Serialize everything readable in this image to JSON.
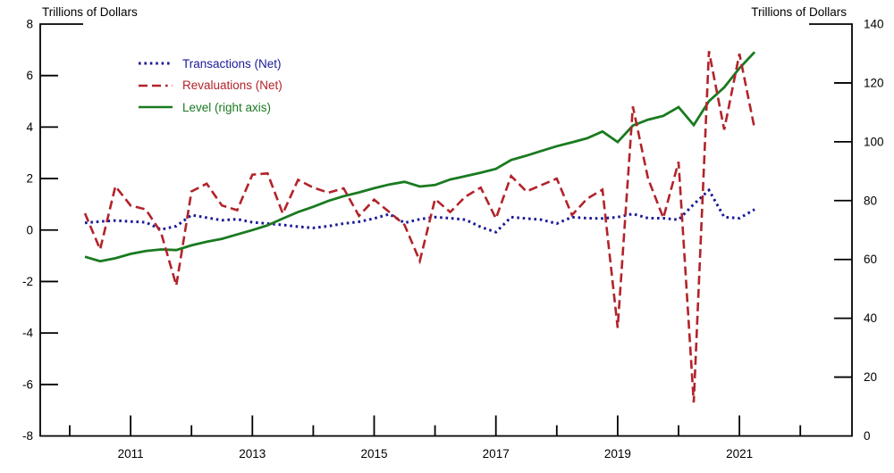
{
  "chart_data": {
    "type": "line",
    "title": "",
    "x_unit": "quarter_end_decimal_year",
    "x": [
      2010.25,
      2010.5,
      2010.75,
      2011.0,
      2011.25,
      2011.5,
      2011.75,
      2012.0,
      2012.25,
      2012.5,
      2012.75,
      2013.0,
      2013.25,
      2013.5,
      2013.75,
      2014.0,
      2014.25,
      2014.5,
      2014.75,
      2015.0,
      2015.25,
      2015.5,
      2015.75,
      2016.0,
      2016.25,
      2016.5,
      2016.75,
      2017.0,
      2017.25,
      2017.5,
      2017.75,
      2018.0,
      2018.25,
      2018.5,
      2018.75,
      2019.0,
      2019.25,
      2019.5,
      2019.75,
      2020.0,
      2020.25,
      2020.5,
      2020.75,
      2021.0,
      2021.25
    ],
    "series": [
      {
        "name": "Transactions (Net)",
        "axis": "left",
        "style": "dotted",
        "color": "#1a1a99",
        "values": [
          0.28,
          0.33,
          0.37,
          0.33,
          0.3,
          0.02,
          0.15,
          0.58,
          0.48,
          0.38,
          0.42,
          0.3,
          0.25,
          0.2,
          0.13,
          0.08,
          0.15,
          0.25,
          0.32,
          0.45,
          0.62,
          0.28,
          0.42,
          0.5,
          0.46,
          0.4,
          0.12,
          -0.08,
          0.5,
          0.45,
          0.4,
          0.25,
          0.5,
          0.46,
          0.45,
          0.5,
          0.63,
          0.46,
          0.46,
          0.4,
          1.0,
          1.55,
          0.5,
          0.46,
          0.8
        ]
      },
      {
        "name": "Revaluations (Net)",
        "axis": "left",
        "style": "dashed",
        "color": "#b2232a",
        "values": [
          0.65,
          -0.75,
          1.7,
          0.95,
          0.8,
          -0.1,
          -2.15,
          1.5,
          1.8,
          0.95,
          0.77,
          2.15,
          2.2,
          0.64,
          1.95,
          1.65,
          1.45,
          1.62,
          0.55,
          1.18,
          0.7,
          0.2,
          -1.2,
          1.2,
          0.7,
          1.3,
          1.65,
          0.45,
          2.1,
          1.5,
          1.75,
          2.0,
          0.58,
          1.22,
          1.57,
          -3.8,
          4.8,
          2.0,
          0.47,
          2.65,
          -6.7,
          6.95,
          3.9,
          6.85,
          3.93
        ]
      },
      {
        "name": "Level (right axis)",
        "axis": "right",
        "style": "solid",
        "color": "#1a7a20",
        "values": [
          60.9,
          59.4,
          60.4,
          61.9,
          62.9,
          63.4,
          63.2,
          64.8,
          66.0,
          67.0,
          68.5,
          70.0,
          71.6,
          73.9,
          76.1,
          77.9,
          79.9,
          81.5,
          82.8,
          84.2,
          85.5,
          86.4,
          84.8,
          85.3,
          87.2,
          88.3,
          89.5,
          90.8,
          93.8,
          95.3,
          96.9,
          98.5,
          99.8,
          101.2,
          103.5,
          99.9,
          105.5,
          107.5,
          108.8,
          111.8,
          105.7,
          113.8,
          118.5,
          125.0,
          130.5
        ]
      }
    ],
    "left_axis": {
      "title": "Trillions of Dollars",
      "min": -8,
      "max": 8,
      "tick_step": 2
    },
    "right_axis": {
      "title": "Trillions of Dollars",
      "min": 0,
      "max": 140,
      "tick_step": 20
    },
    "x_axis": {
      "tick_year_start": 2010,
      "tick_year_end": 2022,
      "labeled_years": [
        2011,
        2013,
        2015,
        2017,
        2019,
        2021
      ]
    },
    "legend_position": "top-left-inside",
    "grid": false,
    "background": "#ffffff",
    "axis_color": "#000000"
  }
}
